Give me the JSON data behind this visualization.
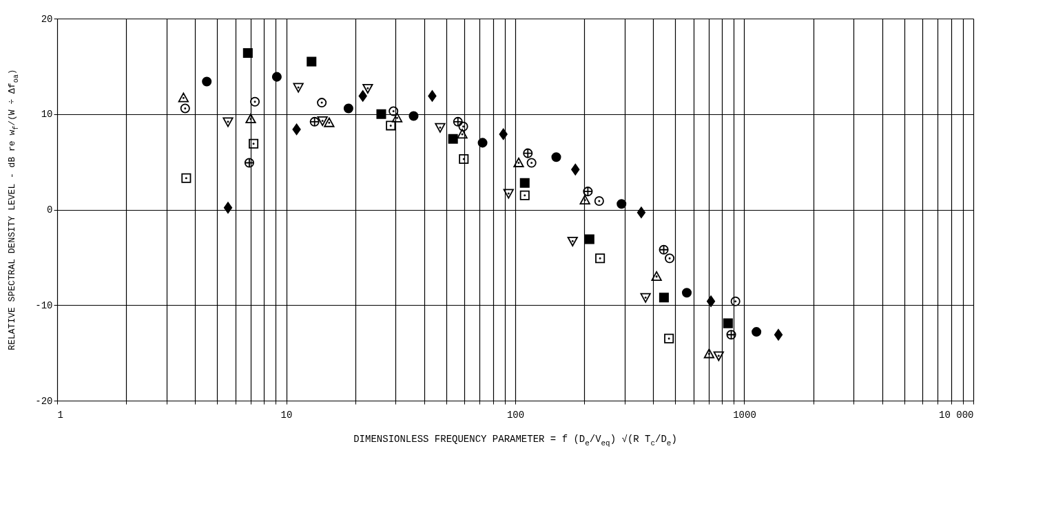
{
  "chart_data": {
    "type": "scatter",
    "xlabel": "DIMENSIONLESS FREQUENCY PARAMETER = f (D$_{e}$/V$_{eq}$) √(R T$_{c}$/D$_{e}$)",
    "ylabel": "RELATIVE SPECTRAL DENSITY LEVEL - dB re w$_{f}$/(W ÷ Δf$_{oa}$)",
    "log": "x",
    "xlim": [
      1,
      10000
    ],
    "xticks": [
      1,
      {
        "value": 2,
        "label": null
      },
      {
        "value": 3,
        "label": null
      },
      {
        "value": 4,
        "label": null
      },
      {
        "value": 5,
        "label": null
      },
      {
        "value": 6,
        "label": null
      },
      {
        "value": 7,
        "label": null
      },
      {
        "value": 8,
        "label": null
      },
      {
        "value": 9,
        "label": null
      },
      10,
      {
        "value": 20,
        "label": null
      },
      {
        "value": 30,
        "label": null
      },
      {
        "value": 40,
        "label": null
      },
      {
        "value": 50,
        "label": null
      },
      {
        "value": 60,
        "label": null
      },
      {
        "value": 70,
        "label": null
      },
      {
        "value": 80,
        "label": null
      },
      {
        "value": 90,
        "label": null
      },
      100,
      {
        "value": 200,
        "label": null
      },
      {
        "value": 300,
        "label": null
      },
      {
        "value": 400,
        "label": null
      },
      {
        "value": 500,
        "label": null
      },
      {
        "value": 600,
        "label": null
      },
      {
        "value": 700,
        "label": null
      },
      {
        "value": 800,
        "label": null
      },
      {
        "value": 900,
        "label": null
      },
      1000,
      {
        "value": 2000,
        "label": null
      },
      {
        "value": 3000,
        "label": null
      },
      {
        "value": 4000,
        "label": null
      },
      {
        "value": 5000,
        "label": null
      },
      {
        "value": 6000,
        "label": null
      },
      {
        "value": 7000,
        "label": null
      },
      {
        "value": 8000,
        "label": null
      },
      {
        "value": 9000,
        "label": null
      },
      {
        "value": 10000,
        "label": "10 000"
      }
    ],
    "ylim": [
      -20,
      20
    ],
    "yticks": [
      -20,
      -10,
      0,
      10,
      20
    ],
    "grid": true,
    "series": [
      {
        "color": "#000000",
        "marker": "circle",
        "x": [
          4.5,
          9.1,
          18.7,
          36,
          72,
          151,
          291,
          561,
          1130
        ],
        "values": [
          13.4,
          13.9,
          10.6,
          9.8,
          7.0,
          5.5,
          0.6,
          -8.7,
          -12.8
        ]
      },
      {
        "color": "#000000",
        "marker": "square",
        "x": [
          6.8,
          12.9,
          26,
          53.5,
          110,
          211,
          446,
          849
        ],
        "values": [
          16.4,
          15.5,
          10.0,
          7.4,
          2.8,
          -3.1,
          -9.2,
          -11.9
        ]
      },
      {
        "color": "#000000",
        "marker": "diamond",
        "x": [
          5.57,
          11.1,
          21.6,
          43.4,
          88.7,
          183,
          355,
          715,
          1409
        ],
        "values": [
          0.2,
          8.4,
          11.9,
          11.9,
          7.9,
          4.2,
          -0.3,
          -9.6,
          -13.1
        ]
      },
      {
        "color": "#000000",
        "marker": "circle-dot",
        "x": [
          3.62,
          7.3,
          14.3,
          29.4,
          59.3,
          117.8,
          232.5,
          472,
          915
        ],
        "values": [
          10.6,
          11.3,
          11.2,
          10.3,
          8.7,
          4.9,
          0.9,
          -5.1,
          -9.6
        ]
      },
      {
        "color": "#000000",
        "marker": "cross",
        "x": [
          6.9,
          13.3,
          56.2,
          113.5,
          207.5,
          445,
          877
        ],
        "values": [
          4.9,
          9.2,
          9.2,
          5.9,
          1.9,
          -4.2,
          -13.1
        ]
      },
      {
        "color": "#000000",
        "marker": "square-dot",
        "x": [
          3.66,
          7.2,
          28.6,
          59.6,
          110,
          234.6,
          469
        ],
        "values": [
          3.3,
          6.9,
          8.8,
          5.3,
          1.5,
          -5.1,
          -13.5
        ]
      },
      {
        "color": "#000000",
        "marker": "triangle-dot",
        "x": [
          3.56,
          7.0,
          15.4,
          30.5,
          58.7,
          103.5,
          201.5,
          414,
          702
        ],
        "values": [
          11.7,
          9.5,
          9.1,
          9.6,
          7.9,
          4.9,
          1.0,
          -7.0,
          -15.1
        ]
      },
      {
        "color": "#000000",
        "marker": "triangle-down-dot",
        "x": [
          5.57,
          11.3,
          14.4,
          22.7,
          47,
          93.5,
          178,
          370.6,
          773
        ],
        "values": [
          9.2,
          12.8,
          9.3,
          12.7,
          8.6,
          1.7,
          -3.3,
          -9.2,
          -15.3
        ]
      }
    ]
  }
}
